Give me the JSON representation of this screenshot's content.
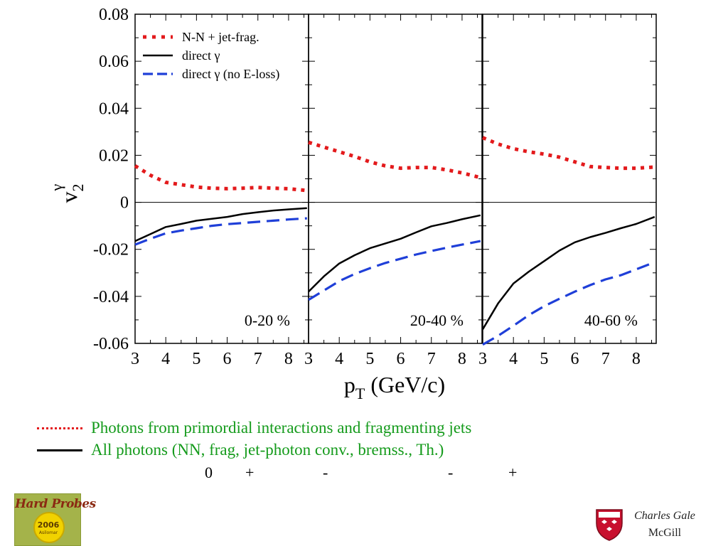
{
  "chart_data": {
    "type": "line",
    "ylabel": "v",
    "ylabel_sub": "2",
    "ylabel_sup": "γ",
    "xlabel": "p",
    "xlabel_sub": "T",
    "xlabel_unit": " (GeV/c)",
    "ylim": [
      -0.06,
      0.08
    ],
    "y_ticks": [
      "-0.06",
      "-0.04",
      "-0.02",
      "0",
      "0.02",
      "0.04",
      "0.06",
      "0.08"
    ],
    "y_tick_values": [
      -0.06,
      -0.04,
      -0.02,
      0,
      0.02,
      0.04,
      0.06,
      0.08
    ],
    "xlim": [
      3,
      8.65
    ],
    "x_ticks": [
      "3",
      "4",
      "5",
      "6",
      "7",
      "8"
    ],
    "x_tick_values": [
      3,
      4,
      5,
      6,
      7,
      8
    ],
    "zero_line": true,
    "grid": false,
    "legend_position": "top-left of first panel",
    "legend": [
      {
        "label": "N-N + jet-frag.",
        "color": "#e31a1c",
        "style": "dotted"
      },
      {
        "label": "direct γ",
        "color": "#000000",
        "style": "solid"
      },
      {
        "label": "direct γ (no E-loss)",
        "color": "#1f3fd8",
        "style": "dashed"
      }
    ],
    "panels": [
      {
        "label": "0-20 %",
        "series": [
          {
            "x": [
              3,
              3.5,
              4,
              4.5,
              5,
              5.5,
              6,
              6.5,
              7,
              7.5,
              8,
              8.6
            ],
            "y": [
              0.0155,
              0.0115,
              0.0085,
              0.0075,
              0.0065,
              0.006,
              0.0058,
              0.006,
              0.0063,
              0.006,
              0.0058,
              0.005
            ]
          },
          {
            "x": [
              3,
              3.5,
              4,
              4.5,
              5,
              5.5,
              6,
              6.5,
              7,
              7.5,
              8,
              8.6
            ],
            "y": [
              -0.0165,
              -0.0135,
              -0.0105,
              -0.0092,
              -0.0078,
              -0.007,
              -0.0062,
              -0.005,
              -0.0042,
              -0.0035,
              -0.003,
              -0.0025
            ]
          },
          {
            "x": [
              3,
              3.5,
              4,
              4.5,
              5,
              5.5,
              6,
              6.5,
              7,
              7.5,
              8,
              8.6
            ],
            "y": [
              -0.018,
              -0.0155,
              -0.0132,
              -0.012,
              -0.011,
              -0.01,
              -0.0093,
              -0.0088,
              -0.0083,
              -0.0078,
              -0.0073,
              -0.0068
            ]
          }
        ]
      },
      {
        "label": "20-40 %",
        "series": [
          {
            "x": [
              3,
              3.5,
              4,
              4.5,
              5,
              5.5,
              6,
              6.5,
              7,
              7.5,
              8,
              8.6
            ],
            "y": [
              0.0255,
              0.0235,
              0.0215,
              0.0195,
              0.0172,
              0.0155,
              0.0145,
              0.0148,
              0.0148,
              0.0138,
              0.0125,
              0.0105
            ]
          },
          {
            "x": [
              3,
              3.5,
              4,
              4.5,
              5,
              5.5,
              6,
              6.5,
              7,
              7.5,
              8,
              8.6
            ],
            "y": [
              -0.038,
              -0.0315,
              -0.026,
              -0.0225,
              -0.0195,
              -0.0175,
              -0.0155,
              -0.0128,
              -0.0102,
              -0.0088,
              -0.0072,
              -0.0055
            ]
          },
          {
            "x": [
              3,
              3.5,
              4,
              4.5,
              5,
              5.5,
              6,
              6.5,
              7,
              7.5,
              8,
              8.6
            ],
            "y": [
              -0.0415,
              -0.0375,
              -0.0335,
              -0.0305,
              -0.028,
              -0.0258,
              -0.024,
              -0.0222,
              -0.0207,
              -0.0193,
              -0.018,
              -0.0165
            ]
          }
        ]
      },
      {
        "label": "40-60 %",
        "series": [
          {
            "x": [
              3,
              3.5,
              4,
              4.5,
              5,
              5.5,
              6,
              6.5,
              7,
              7.5,
              8,
              8.6
            ],
            "y": [
              0.0275,
              0.0248,
              0.0228,
              0.0215,
              0.0205,
              0.0192,
              0.0172,
              0.0152,
              0.0148,
              0.0145,
              0.0145,
              0.015
            ]
          },
          {
            "x": [
              3,
              3.5,
              4,
              4.5,
              5,
              5.5,
              6,
              6.5,
              7,
              7.5,
              8,
              8.6
            ],
            "y": [
              -0.054,
              -0.043,
              -0.0345,
              -0.0295,
              -0.025,
              -0.0205,
              -0.017,
              -0.0148,
              -0.013,
              -0.011,
              -0.0092,
              -0.0062
            ]
          },
          {
            "x": [
              3,
              3.5,
              4,
              4.5,
              5,
              5.5,
              6,
              6.5,
              7,
              7.5,
              8,
              8.6
            ],
            "y": [
              -0.0605,
              -0.0568,
              -0.0525,
              -0.048,
              -0.0442,
              -0.041,
              -0.038,
              -0.0352,
              -0.0328,
              -0.031,
              -0.0285,
              -0.0255
            ]
          }
        ]
      }
    ]
  },
  "notes": [
    {
      "text": "Photons from primordial interactions and fragmenting jets",
      "color": "#159b1c",
      "swatch_color": "#e31a1c",
      "swatch_style": "dotted"
    },
    {
      "text": "All photons (NN, frag, jet-photon conv., bremss., Th.)",
      "color": "#159b1c",
      "swatch_color": "#000000",
      "swatch_style": "solid"
    }
  ],
  "signs": [
    "0",
    "+",
    "-",
    "-",
    "+"
  ],
  "logo": {
    "title": "Hard Probes",
    "year": "2006",
    "place": "Asilomar"
  },
  "credit": {
    "name": "Charles Gale",
    "affiliation": "McGill"
  },
  "colors": {
    "note_text": "#159b1c",
    "crest_red": "#c8102e"
  }
}
